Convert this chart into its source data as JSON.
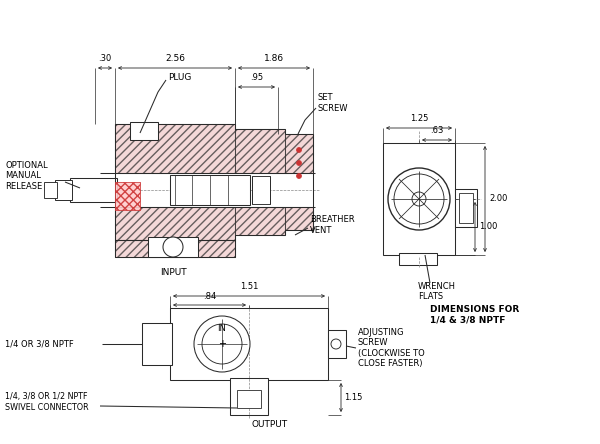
{
  "bg": "white",
  "lc": "#2a2a2a",
  "hc": "#cc3333",
  "fc_hatch": "#f0c8c8",
  "dims": {
    "d030": ".30",
    "d256": "2.56",
    "d186": "1.86",
    "d095": ".95",
    "d125": "1.25",
    "d063": ".63",
    "d200": "2.00",
    "d100": "1.00",
    "d151": "1.51",
    "d084": ".84",
    "d115": "1.15"
  },
  "labels": {
    "plug": "PLUG",
    "set_screw": "SET\nSCREW",
    "input": "INPUT",
    "opt_manual": "OPTIONAL\nMANUAL\nRELEASE",
    "breather": "BREATHER\nVENT",
    "wrench": "WRENCH\nFLATS",
    "dims_for": "DIMENSIONS FOR\n1/4 & 3/8 NPTF",
    "nptf_14_38": "1/4 OR 3/8 NPTF",
    "in_lbl": "IN",
    "adj_screw": "ADJUSTING\nSCREW\n(CLOCKWISE TO\nCLOSE FASTER)",
    "swivel": "1/4, 3/8 OR 1/2 NPTF\nSWIVEL CONNECTOR",
    "output": "OUTPUT"
  }
}
